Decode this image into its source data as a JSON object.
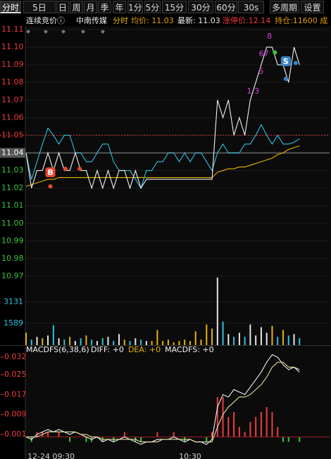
{
  "toolbar": {
    "tabs": [
      "分时",
      "5日",
      "日",
      "周",
      "月",
      "季",
      "年",
      "1分",
      "5分",
      "15分",
      "30分",
      "60分",
      "30s",
      "多周期",
      "设置"
    ]
  },
  "info": {
    "status": "连续竞价ⓘ",
    "name": "中南传媒",
    "mode": "分时",
    "avg": "均价: 11.03",
    "latest": "最新: 11.03",
    "limit": "涨停价:12.14",
    "position": "持仓:11600 成"
  },
  "chart_data": [
    {
      "type": "line",
      "x": [
        0,
        2,
        4,
        6,
        8,
        10,
        12,
        14,
        16,
        18,
        20,
        22,
        24,
        26,
        28,
        30,
        32,
        34,
        36,
        38,
        40,
        42,
        44,
        46,
        48,
        50,
        52,
        54,
        56,
        58,
        60,
        62,
        64,
        66,
        68,
        70,
        72,
        74,
        76,
        78,
        80,
        82,
        84,
        86,
        88,
        90,
        92,
        94,
        96,
        98,
        100
      ],
      "xlim": [
        0,
        111
      ],
      "ylim": [
        10.968,
        11.112
      ],
      "yticks": [
        11.11,
        {
          "value": 11.1,
          "label": "11.10"
        },
        11.09,
        11.08,
        11.07,
        11.06,
        11.05,
        11.04,
        11.03,
        11.02,
        11.01,
        {
          "value": 11,
          "label": "11.00"
        },
        10.99,
        10.98,
        10.97
      ],
      "grid": true,
      "ref_price": 11.05,
      "highlight_price": 11.04,
      "up_color": "#f03c3c",
      "down_color": "#3cc83c",
      "series": [
        {
          "color": "#f2f2f2",
          "values": [
            11.04,
            11.02,
            11.03,
            11.03,
            11.04,
            11.03,
            11.04,
            11.03,
            11.03,
            11.04,
            11.03,
            11.03,
            11.02,
            11.03,
            11.02,
            11.03,
            11.02,
            11.03,
            11.03,
            11.02,
            11.03,
            11.02,
            11.025,
            11.025,
            11.025,
            11.025,
            11.025,
            11.025,
            11.025,
            11.025,
            11.025,
            11.025,
            11.025,
            11.025,
            11.025,
            11.07,
            11.06,
            11.07,
            11.05,
            11.06,
            11.05,
            11.07,
            11.08,
            11.09,
            11.1,
            11.1,
            11.09,
            11.09,
            11.08,
            11.1,
            11.09
          ]
        },
        {
          "color": "#2fc1e0",
          "values": [
            11.04,
            11.025,
            11.035,
            11.045,
            11.054,
            11.05,
            11.045,
            11.05,
            11.05,
            11.04,
            11.04,
            11.035,
            11.035,
            11.04,
            11.045,
            11.045,
            11.035,
            11.03,
            11.03,
            11.03,
            11.025,
            11.02,
            11.03,
            11.03,
            11.035,
            11.035,
            11.04,
            11.04,
            11.035,
            11.04,
            11.035,
            11.04,
            11.04,
            11.035,
            11.03,
            11.04,
            11.045,
            11.04,
            11.04,
            11.04,
            11.045,
            11.045,
            11.05,
            11.056,
            11.05,
            11.045,
            11.05,
            11.045,
            11.045,
            11.046,
            11.048
          ]
        },
        {
          "color": "#e6b400",
          "values": [
            11.021,
            11.022,
            11.023,
            11.024,
            11.025,
            11.025,
            11.026,
            11.026,
            11.026,
            11.026,
            11.026,
            11.026,
            11.026,
            11.026,
            11.026,
            11.026,
            11.026,
            11.026,
            11.026,
            11.026,
            11.026,
            11.026,
            11.026,
            11.026,
            11.026,
            11.026,
            11.026,
            11.026,
            11.026,
            11.026,
            11.026,
            11.026,
            11.026,
            11.026,
            11.026,
            11.029,
            11.03,
            11.031,
            11.031,
            11.032,
            11.032,
            11.033,
            11.034,
            11.035,
            11.036,
            11.037,
            11.039,
            11.04,
            11.042,
            11.043,
            11.044
          ]
        }
      ],
      "trade_markers": [
        {
          "label": "B",
          "x": 8.9,
          "y": 11.029,
          "color": "#e8472f"
        },
        {
          "label": "S",
          "x": 95,
          "y": 11.092,
          "color": "#3a86c8"
        }
      ],
      "dots": [
        {
          "x": 8.9,
          "y": 11.021,
          "color": "#e8472f"
        },
        {
          "x": 14.4,
          "y": 11.031,
          "color": "#e8472f"
        },
        {
          "x": 19.6,
          "y": 11.031,
          "color": "#e8472f"
        },
        {
          "x": 98.6,
          "y": 11.091,
          "color": "#3a86c8"
        },
        {
          "x": 95,
          "y": 11.082,
          "color": "#3a86c8"
        },
        {
          "x": 91,
          "y": 11.097,
          "color": "#3cc83c"
        }
      ],
      "annotations": [
        {
          "text": "8",
          "x": 89,
          "y": 11.106,
          "color": "#e040e0"
        },
        {
          "text": "67",
          "x": 87,
          "y": 11.096,
          "color": "#e040e0"
        },
        {
          "text": "5",
          "x": 86,
          "y": 11.086,
          "color": "#e040e0"
        },
        {
          "text": "1 3",
          "x": 83,
          "y": 11.075,
          "color": "#e040e0"
        }
      ]
    },
    {
      "type": "bar",
      "xlim": [
        0,
        111
      ],
      "ylim": [
        0,
        5150
      ],
      "yticks": [
        1589,
        3131
      ],
      "tick_color": "#2fc1e0",
      "up_color": "#e6e6e6",
      "down_color": "#2fc1e0",
      "flat_color": "#e6b400",
      "values": [
        900,
        400,
        600,
        500,
        700,
        1450,
        500,
        400,
        600,
        300,
        500,
        700,
        400,
        300,
        500,
        600,
        300,
        800,
        400,
        300,
        500,
        400,
        300,
        300,
        1100,
        300,
        400,
        200,
        300,
        400,
        300,
        1000,
        400,
        1500,
        1200,
        4900,
        1700,
        800,
        600,
        900,
        600,
        1500,
        700,
        1300,
        900,
        1400,
        600,
        1100,
        700,
        800,
        500
      ]
    },
    {
      "type": "macd",
      "title": "MACDFS(6,38,6)",
      "readouts": [
        {
          "text": "DIFF: +0",
          "color": "#f2f2f2"
        },
        {
          "text": "DEA: +0",
          "color": "#e6b400"
        },
        {
          "text": "MACDFS: +0",
          "color": "#f2f2f2"
        }
      ],
      "xlim": [
        0,
        111
      ],
      "ylim": [
        -0.0052,
        0.0343
      ],
      "yticks": [
        0.032,
        0.025,
        0.017,
        0.009,
        0.001
      ],
      "tick_color": "#f03c3c",
      "xticks": [
        {
          "value": 0,
          "label": "12-24 09:30"
        },
        {
          "value": 60,
          "label": "10:30"
        }
      ],
      "up_color": "#f03c3c",
      "down_color": "#3cc83c",
      "series": [
        {
          "name": "DIFF",
          "color": "#f2f2f2",
          "values": [
            0,
            -0.001,
            0.001,
            0.002,
            0.003,
            0.002,
            0.003,
            0.002,
            0.001,
            0.002,
            0.001,
            0,
            -0.001,
            0,
            -0.002,
            -0.001,
            -0.002,
            -0.001,
            0,
            -0.001,
            -0.002,
            -0.003,
            -0.002,
            -0.002,
            -0.001,
            -0.001,
            -0.001,
            0,
            -0.001,
            -0.002,
            -0.001,
            -0.002,
            -0.002,
            -0.003,
            -0.001,
            0.012,
            0.017,
            0.016,
            0.019,
            0.018,
            0.017,
            0.02,
            0.023,
            0.026,
            0.03,
            0.033,
            0.032,
            0.029,
            0.027,
            0.028,
            0.026
          ]
        },
        {
          "name": "DEA",
          "color": "#e8dca0",
          "values": [
            0,
            0,
            0,
            0.001,
            0.002,
            0.002,
            0.002,
            0.002,
            0.002,
            0.002,
            0.001,
            0.001,
            0,
            0,
            -0.001,
            -0.001,
            -0.001,
            -0.001,
            -0.001,
            -0.001,
            -0.001,
            -0.002,
            -0.002,
            -0.002,
            -0.002,
            -0.001,
            -0.001,
            -0.001,
            -0.001,
            -0.001,
            -0.001,
            -0.002,
            -0.002,
            -0.002,
            -0.002,
            0.004,
            0.009,
            0.012,
            0.014,
            0.016,
            0.016,
            0.017,
            0.019,
            0.021,
            0.024,
            0.028,
            0.03,
            0.03,
            0.028,
            0.028,
            0.027
          ]
        }
      ],
      "histogram": [
        0,
        -0.002,
        0.002,
        0.002,
        0.002,
        0,
        0.002,
        0,
        -0.002,
        0,
        0,
        -0.002,
        -0.002,
        0,
        -0.002,
        0,
        -0.002,
        0,
        0.002,
        0,
        -0.002,
        -0.002,
        0,
        0,
        0.002,
        0,
        0,
        0.002,
        0,
        -0.002,
        0,
        0,
        0,
        -0.002,
        0.002,
        0.016,
        0.016,
        0.008,
        0.01,
        0.004,
        0.002,
        0.006,
        0.008,
        0.01,
        0.012,
        0.01,
        0.004,
        -0.002,
        -0.002,
        0,
        -0.002
      ]
    }
  ]
}
